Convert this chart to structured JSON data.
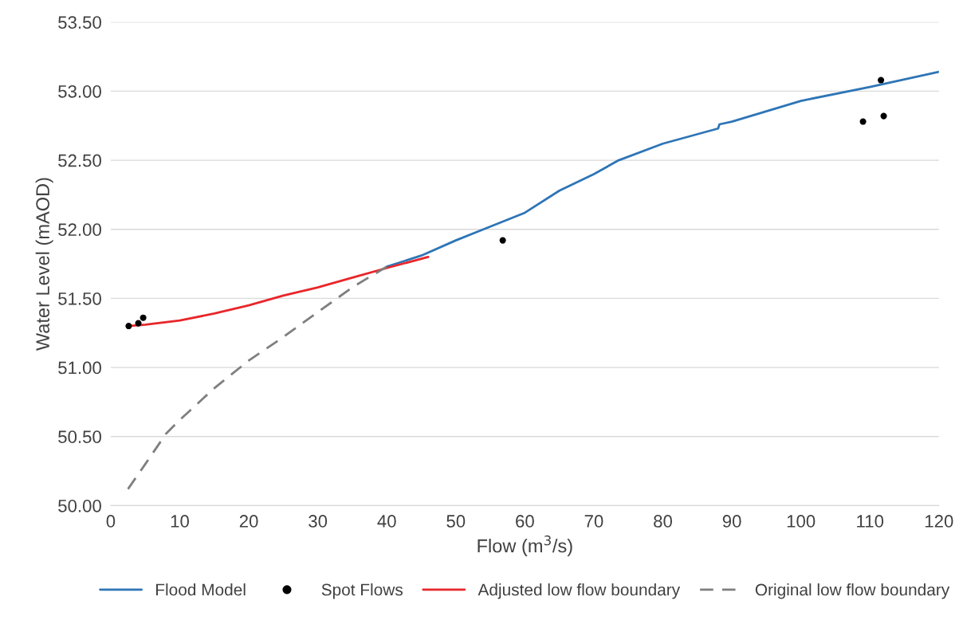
{
  "chart_data": {
    "type": "line",
    "xlabel": "Flow (m$^{3}$/s)",
    "ylabel": "Water Level (mAOD)",
    "xlim": [
      0,
      120
    ],
    "ylim": [
      50,
      53.5
    ],
    "xticks": [
      0,
      10,
      20,
      30,
      40,
      50,
      60,
      70,
      80,
      90,
      100,
      110,
      120
    ],
    "yticks": [
      {
        "value": 50,
        "label": "50.00"
      },
      {
        "value": 50.5,
        "label": "50.50"
      },
      {
        "value": 51,
        "label": "51.00"
      },
      {
        "value": 51.5,
        "label": "51.50"
      },
      {
        "value": 52,
        "label": "52.00"
      },
      {
        "value": 52.5,
        "label": "52.50"
      },
      {
        "value": 53,
        "label": "53.00"
      },
      {
        "value": 53.5,
        "label": "53.50"
      }
    ],
    "grid": "y",
    "legend": "bottom",
    "series": [
      {
        "name": "Flood Model",
        "color": "#2e75b6",
        "x": [
          40,
          45,
          50,
          54,
          60,
          65,
          70,
          73.6,
          80,
          88,
          88.2,
          90,
          100,
          110,
          120
        ],
        "values": [
          51.73,
          51.81,
          51.92,
          52.0,
          52.12,
          52.28,
          52.4,
          52.5,
          52.62,
          52.73,
          52.76,
          52.78,
          52.93,
          53.03,
          53.14
        ]
      },
      {
        "name": "Spot Flows",
        "type": "scatter",
        "marker": "circle",
        "color": "#000000",
        "x": [
          2.6,
          4,
          4.7,
          56.8,
          109,
          111.6,
          112
        ],
        "values": [
          51.3,
          51.32,
          51.36,
          51.92,
          52.78,
          53.08,
          52.82
        ]
      },
      {
        "name": "Adjusted low flow boundary",
        "color": "#e8262a",
        "x": [
          2.5,
          5,
          10,
          15,
          20,
          25,
          30,
          35,
          40,
          46
        ],
        "values": [
          51.3,
          51.31,
          51.34,
          51.39,
          51.45,
          51.52,
          51.58,
          51.65,
          51.72,
          51.8
        ]
      },
      {
        "name": "Original low flow boundary",
        "line_style": "dashed",
        "color": "#7f7f7f",
        "x": [
          2.5,
          5,
          8,
          10,
          15,
          20,
          25,
          30,
          35,
          40
        ],
        "values": [
          50.12,
          50.3,
          50.52,
          50.62,
          50.85,
          51.05,
          51.22,
          51.4,
          51.58,
          51.73
        ]
      }
    ]
  }
}
